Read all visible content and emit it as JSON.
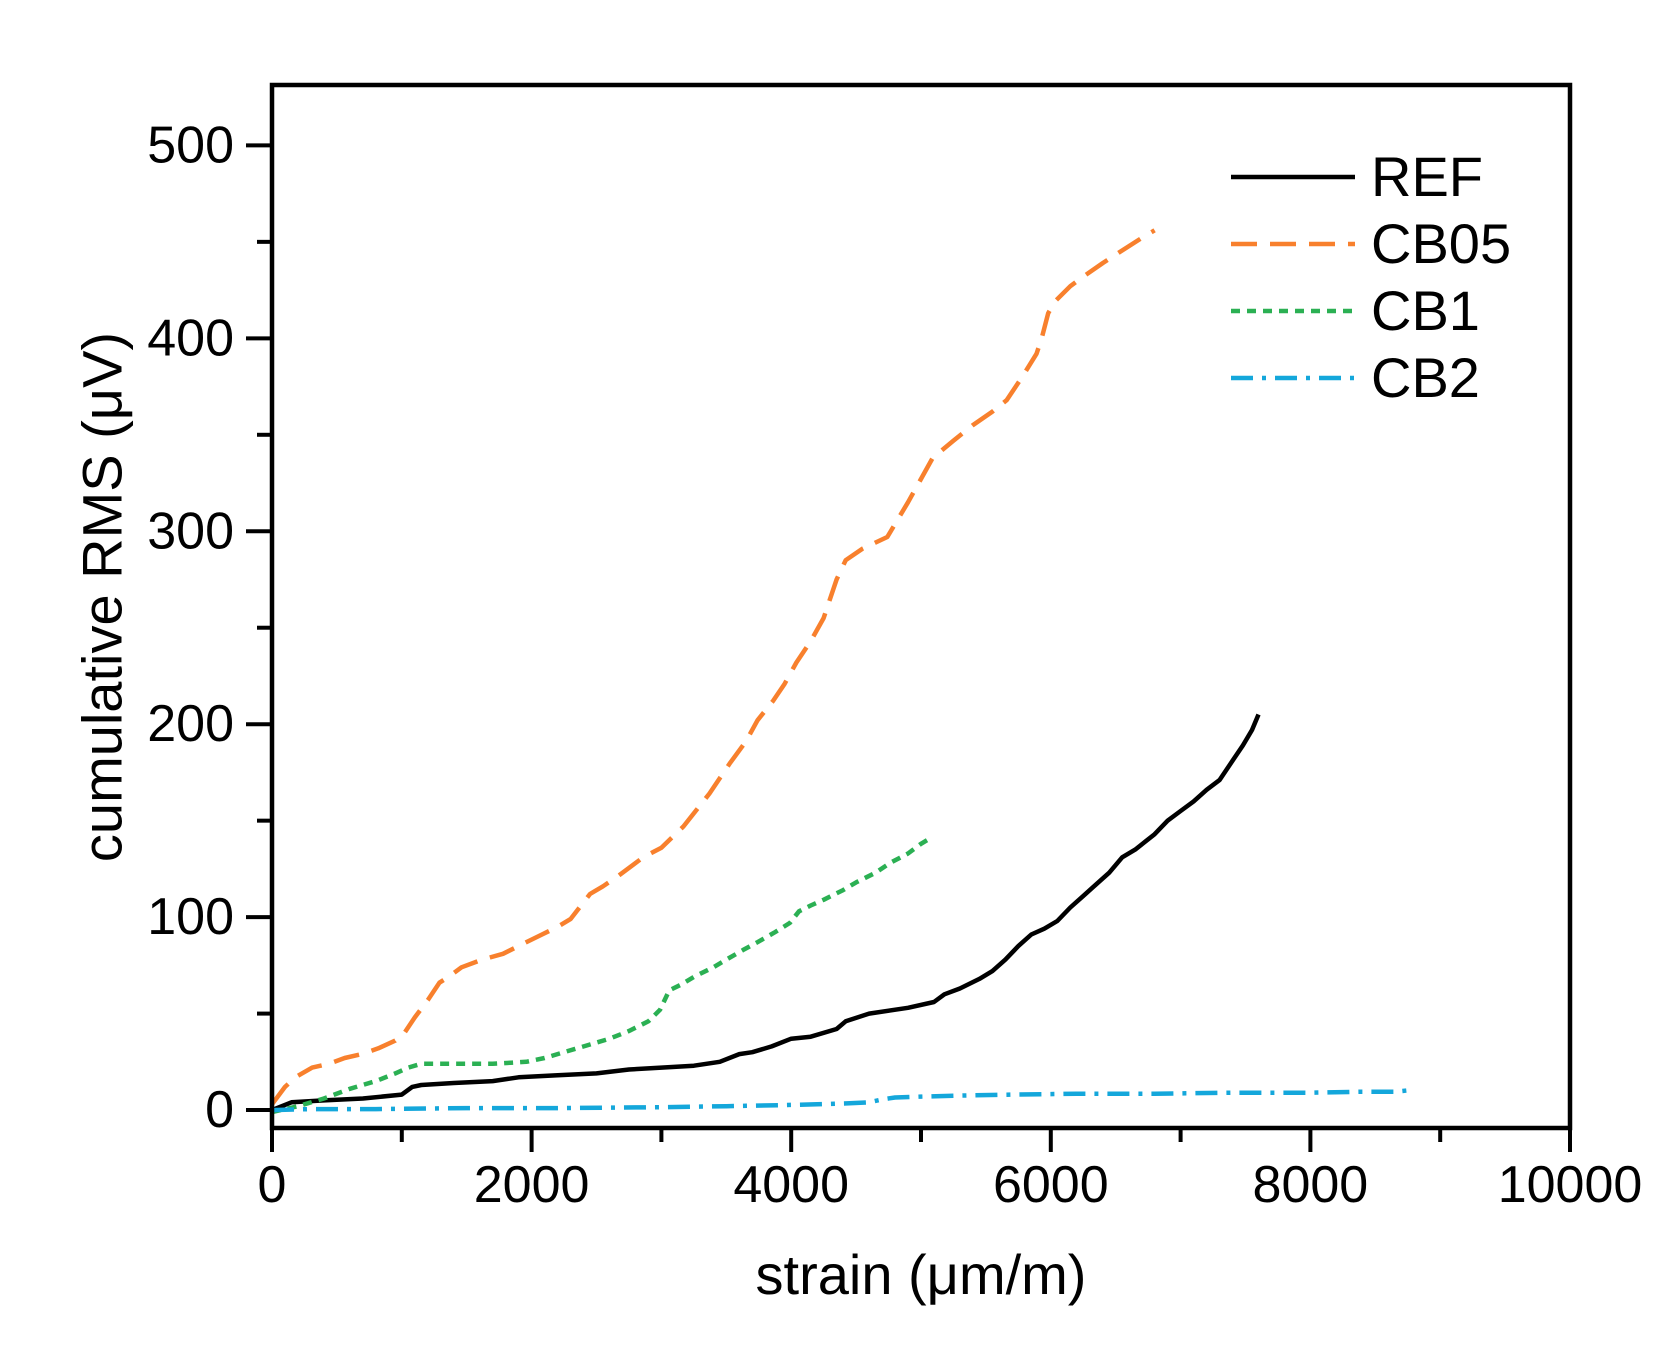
{
  "chart_data": {
    "type": "line",
    "title": "",
    "xlabel": "strain (μm/m)",
    "ylabel": "cumulative RMS (μV)",
    "xlim": [
      0,
      10000
    ],
    "ylim": [
      -9.3,
      531.3
    ],
    "grid": false,
    "legend_position": "top-right",
    "x_major_ticks": [
      0,
      2000,
      4000,
      6000,
      8000,
      10000
    ],
    "x_minor_ticks": [
      1000,
      3000,
      5000,
      7000,
      9000
    ],
    "y_major_ticks": [
      0,
      100,
      200,
      300,
      400,
      500
    ],
    "y_minor_ticks": [
      50,
      150,
      250,
      350,
      450
    ],
    "axis_color": "#000000",
    "series": [
      {
        "name": "REF",
        "color": "#000000",
        "dash_style": "solid",
        "dasharray": "",
        "points": [
          [
            0,
            0
          ],
          [
            150,
            4
          ],
          [
            400,
            5
          ],
          [
            700,
            6
          ],
          [
            1000,
            8
          ],
          [
            1080,
            12
          ],
          [
            1150,
            13
          ],
          [
            1400,
            14
          ],
          [
            1700,
            15
          ],
          [
            1900,
            17
          ],
          [
            2200,
            18
          ],
          [
            2500,
            19
          ],
          [
            2750,
            21
          ],
          [
            3000,
            22
          ],
          [
            3250,
            23
          ],
          [
            3450,
            25
          ],
          [
            3600,
            29
          ],
          [
            3700,
            30
          ],
          [
            3850,
            33
          ],
          [
            4000,
            37
          ],
          [
            4150,
            38
          ],
          [
            4350,
            42
          ],
          [
            4420,
            46
          ],
          [
            4600,
            50
          ],
          [
            4900,
            53
          ],
          [
            5100,
            56
          ],
          [
            5180,
            60
          ],
          [
            5300,
            63
          ],
          [
            5450,
            68
          ],
          [
            5550,
            72
          ],
          [
            5650,
            78
          ],
          [
            5750,
            85
          ],
          [
            5850,
            91
          ],
          [
            5950,
            94
          ],
          [
            6050,
            98
          ],
          [
            6150,
            105
          ],
          [
            6250,
            111
          ],
          [
            6350,
            117
          ],
          [
            6450,
            123
          ],
          [
            6550,
            131
          ],
          [
            6650,
            135
          ],
          [
            6800,
            143
          ],
          [
            6900,
            150
          ],
          [
            7000,
            155
          ],
          [
            7100,
            160
          ],
          [
            7200,
            166
          ],
          [
            7300,
            171
          ],
          [
            7400,
            181
          ],
          [
            7480,
            189
          ],
          [
            7550,
            197
          ],
          [
            7600,
            205
          ]
        ]
      },
      {
        "name": "CB05",
        "color": "#F8802D",
        "dash_style": "long-dash",
        "dasharray": "26 13",
        "points": [
          [
            0,
            3
          ],
          [
            100,
            12
          ],
          [
            180,
            17
          ],
          [
            310,
            22
          ],
          [
            440,
            24
          ],
          [
            560,
            27
          ],
          [
            690,
            29
          ],
          [
            820,
            32
          ],
          [
            950,
            36
          ],
          [
            1020,
            40
          ],
          [
            1100,
            48
          ],
          [
            1200,
            57
          ],
          [
            1290,
            66
          ],
          [
            1360,
            69
          ],
          [
            1460,
            74
          ],
          [
            1620,
            78
          ],
          [
            1780,
            81
          ],
          [
            1930,
            86
          ],
          [
            2080,
            91
          ],
          [
            2200,
            95
          ],
          [
            2300,
            99
          ],
          [
            2450,
            112
          ],
          [
            2550,
            116
          ],
          [
            2660,
            121
          ],
          [
            2860,
            131
          ],
          [
            3000,
            136
          ],
          [
            3170,
            147
          ],
          [
            3370,
            164
          ],
          [
            3530,
            180
          ],
          [
            3650,
            191
          ],
          [
            3740,
            202
          ],
          [
            3860,
            212
          ],
          [
            3950,
            221
          ],
          [
            4040,
            232
          ],
          [
            4150,
            243
          ],
          [
            4250,
            255
          ],
          [
            4350,
            275
          ],
          [
            4420,
            285
          ],
          [
            4550,
            291
          ],
          [
            4740,
            297
          ],
          [
            4900,
            315
          ],
          [
            5090,
            338
          ],
          [
            5250,
            347
          ],
          [
            5400,
            355
          ],
          [
            5550,
            362
          ],
          [
            5660,
            368
          ],
          [
            5780,
            380
          ],
          [
            5890,
            392
          ],
          [
            5930,
            400
          ],
          [
            5980,
            413
          ],
          [
            6030,
            419
          ],
          [
            6150,
            427
          ],
          [
            6250,
            432
          ],
          [
            6400,
            439
          ],
          [
            6560,
            446
          ],
          [
            6700,
            452
          ],
          [
            6800,
            456
          ]
        ]
      },
      {
        "name": "CB1",
        "color": "#2BB053",
        "dash_style": "short-dash",
        "dasharray": "9 7",
        "points": [
          [
            0,
            -1
          ],
          [
            200,
            2
          ],
          [
            400,
            6
          ],
          [
            600,
            11
          ],
          [
            800,
            15
          ],
          [
            950,
            19
          ],
          [
            1050,
            22
          ],
          [
            1150,
            24
          ],
          [
            1400,
            24
          ],
          [
            1700,
            24
          ],
          [
            1960,
            25
          ],
          [
            2100,
            27
          ],
          [
            2250,
            30
          ],
          [
            2450,
            34
          ],
          [
            2600,
            37
          ],
          [
            2750,
            41
          ],
          [
            2900,
            46
          ],
          [
            2990,
            52
          ],
          [
            3060,
            62
          ],
          [
            3150,
            65
          ],
          [
            3250,
            69
          ],
          [
            3400,
            74
          ],
          [
            3500,
            78
          ],
          [
            3630,
            83
          ],
          [
            3740,
            87
          ],
          [
            3870,
            92
          ],
          [
            3990,
            97
          ],
          [
            4060,
            103
          ],
          [
            4150,
            106
          ],
          [
            4250,
            109
          ],
          [
            4400,
            114
          ],
          [
            4500,
            118
          ],
          [
            4650,
            123
          ],
          [
            4760,
            128
          ],
          [
            4900,
            133
          ],
          [
            5000,
            138
          ],
          [
            5050,
            140
          ]
        ]
      },
      {
        "name": "CB2",
        "color": "#14A7DB",
        "dash_style": "dash-dot",
        "dasharray": "22 9 4 9",
        "points": [
          [
            0,
            0
          ],
          [
            300,
            0.5
          ],
          [
            800,
            0.5
          ],
          [
            1500,
            1
          ],
          [
            2200,
            1
          ],
          [
            3000,
            1.5
          ],
          [
            3500,
            2
          ],
          [
            3900,
            2.5
          ],
          [
            4200,
            3
          ],
          [
            4450,
            3.5
          ],
          [
            4600,
            4
          ],
          [
            4700,
            5.5
          ],
          [
            4800,
            6.5
          ],
          [
            5000,
            7
          ],
          [
            5300,
            7.5
          ],
          [
            5700,
            8
          ],
          [
            6200,
            8.5
          ],
          [
            6800,
            8.5
          ],
          [
            7400,
            9
          ],
          [
            8000,
            9
          ],
          [
            8400,
            9.5
          ],
          [
            8650,
            9.5
          ],
          [
            8800,
            10.5
          ]
        ]
      }
    ]
  }
}
